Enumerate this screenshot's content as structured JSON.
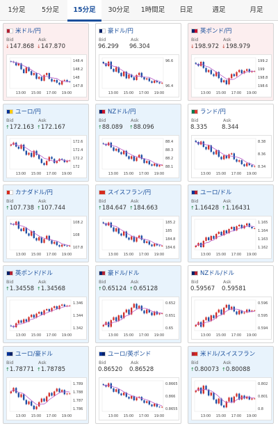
{
  "tabs": [
    "1分足",
    "5分足",
    "15分足",
    "30分足",
    "1時間足",
    "日足",
    "週足",
    "月足"
  ],
  "active_tab": 2,
  "colors": {
    "up_card": "#e8f3fc",
    "down_card": "#fceeef",
    "candle_up": "#d0312d",
    "candle_down": "#1f4fa3",
    "ma": "#b85cc8"
  },
  "labels": {
    "bid": "Bid",
    "ask": "Ask"
  },
  "pairs": [
    {
      "name": "米ドル/円",
      "flag": [
        "#b22234",
        "#ffffff"
      ],
      "trend": "down",
      "bid": "147.868",
      "ask": "147.870",
      "chart_data": {
        "type": "candlestick",
        "x_ticks": [
          "13:00",
          "15:00",
          "17:00",
          "19:00"
        ],
        "y_ticks": [
          "148.4",
          "148.2",
          "148",
          "147.8"
        ],
        "ylim": [
          147.7,
          148.5
        ],
        "close": [
          148.4,
          148.38,
          148.3,
          148.35,
          148.2,
          148.1,
          148.25,
          148.15,
          148.05,
          148.1,
          147.95,
          148.0,
          147.9,
          148.05,
          148.1,
          147.95,
          147.88,
          147.92,
          147.85,
          147.8,
          147.9,
          147.92,
          147.88,
          147.87
        ]
      }
    },
    {
      "name": "豪ドル/円",
      "flag": [
        "#012169",
        "#ffffff"
      ],
      "trend": "flat",
      "bid": "96.299",
      "ask": "96.304",
      "chart_data": {
        "type": "candlestick",
        "x_ticks": [
          "13:00",
          "15:00",
          "17:00",
          "19:00"
        ],
        "y_ticks": [
          "96.6",
          "96.4"
        ],
        "ylim": [
          96.2,
          96.75
        ],
        "close": [
          96.65,
          96.6,
          96.68,
          96.55,
          96.5,
          96.58,
          96.48,
          96.42,
          96.5,
          96.38,
          96.45,
          96.4,
          96.35,
          96.44,
          96.48,
          96.4,
          96.36,
          96.38,
          96.33,
          96.3,
          96.34,
          96.31,
          96.29,
          96.3
        ]
      }
    },
    {
      "name": "英ポンド/円",
      "flag": [
        "#012169",
        "#c8102e"
      ],
      "trend": "down",
      "bid": "198.972",
      "ask": "198.979",
      "chart_data": {
        "type": "candlestick",
        "x_ticks": [
          "13:00",
          "15:00",
          "17:00",
          "19:00"
        ],
        "y_ticks": [
          "199.2",
          "199",
          "198.8",
          "198.6"
        ],
        "ylim": [
          198.55,
          199.3
        ],
        "close": [
          199.15,
          199.1,
          199.2,
          199.05,
          198.95,
          199.0,
          198.9,
          198.85,
          198.95,
          198.8,
          198.7,
          198.75,
          198.65,
          198.8,
          198.9,
          198.85,
          198.95,
          199.0,
          198.92,
          198.98,
          199.02,
          198.95,
          198.97,
          198.97
        ]
      }
    },
    {
      "name": "ユーロ/円",
      "flag": [
        "#003399",
        "#ffcc00"
      ],
      "trend": "up",
      "bid": "172.163",
      "ask": "172.167",
      "chart_data": {
        "type": "candlestick",
        "x_ticks": [
          "13:00",
          "15:00",
          "17:00",
          "19:00"
        ],
        "y_ticks": [
          "172.6",
          "172.4",
          "172.2",
          "172"
        ],
        "ylim": [
          171.95,
          172.7
        ],
        "close": [
          172.55,
          172.6,
          172.5,
          172.45,
          172.55,
          172.4,
          172.3,
          172.35,
          172.25,
          172.4,
          172.3,
          172.2,
          172.1,
          172.05,
          172.15,
          172.25,
          172.2,
          172.1,
          172.15,
          172.2,
          172.18,
          172.12,
          172.16,
          172.16
        ]
      }
    },
    {
      "name": "NZドル/円",
      "flag": [
        "#012169",
        "#cc142b"
      ],
      "trend": "up",
      "bid": "88.089",
      "ask": "88.096",
      "chart_data": {
        "type": "candlestick",
        "x_ticks": [
          "13:00",
          "15:00",
          "17:00",
          "19:00"
        ],
        "y_ticks": [
          "88.4",
          "88.3",
          "88.2",
          "88.1"
        ],
        "ylim": [
          88.03,
          88.48
        ],
        "close": [
          88.4,
          88.38,
          88.42,
          88.35,
          88.3,
          88.33,
          88.28,
          88.25,
          88.3,
          88.22,
          88.18,
          88.22,
          88.15,
          88.2,
          88.24,
          88.18,
          88.12,
          88.15,
          88.1,
          88.08,
          88.11,
          88.07,
          88.09,
          88.09
        ]
      }
    },
    {
      "name": "ランド/円",
      "flag": [
        "#007a4d",
        "#de3831"
      ],
      "trend": "flat",
      "bid": "8.335",
      "ask": "8.344",
      "chart_data": {
        "type": "candlestick",
        "x_ticks": [
          "13:00",
          "15:00",
          "17:00",
          "19:00"
        ],
        "y_ticks": [
          "8.38",
          "8.36",
          "8.34"
        ],
        "ylim": [
          8.33,
          8.392
        ],
        "close": [
          8.385,
          8.38,
          8.386,
          8.375,
          8.37,
          8.378,
          8.365,
          8.36,
          8.368,
          8.355,
          8.35,
          8.358,
          8.352,
          8.36,
          8.362,
          8.35,
          8.345,
          8.348,
          8.34,
          8.336,
          8.342,
          8.338,
          8.335,
          8.336
        ]
      }
    },
    {
      "name": "カナダドル/円",
      "flag": [
        "#d52b1e",
        "#ffffff"
      ],
      "trend": "up",
      "bid": "107.738",
      "ask": "107.744",
      "chart_data": {
        "type": "candlestick",
        "x_ticks": [
          "13:00",
          "15:00",
          "17:00",
          "19:00"
        ],
        "y_ticks": [
          "108.2",
          "108",
          "107.8"
        ],
        "ylim": [
          107.65,
          108.3
        ],
        "close": [
          108.2,
          108.18,
          108.25,
          108.1,
          108.05,
          108.12,
          108.0,
          107.95,
          108.05,
          107.9,
          107.85,
          107.92,
          107.8,
          107.88,
          107.95,
          107.85,
          107.78,
          107.82,
          107.75,
          107.72,
          107.76,
          107.74,
          107.73,
          107.74
        ]
      }
    },
    {
      "name": "スイスフラン/円",
      "flag": [
        "#d52b1e",
        "#d52b1e"
      ],
      "trend": "up",
      "bid": "184.647",
      "ask": "184.663",
      "chart_data": {
        "type": "candlestick",
        "x_ticks": [
          "13:00",
          "15:00",
          "17:00",
          "19:00"
        ],
        "y_ticks": [
          "185.2",
          "185",
          "184.8",
          "184.6"
        ],
        "ylim": [
          184.55,
          185.3
        ],
        "close": [
          185.2,
          185.15,
          185.22,
          185.1,
          185.0,
          185.08,
          184.95,
          184.9,
          185.0,
          184.85,
          184.8,
          184.88,
          184.75,
          184.85,
          184.9,
          184.8,
          184.72,
          184.76,
          184.68,
          184.64,
          184.7,
          184.66,
          184.65,
          184.65
        ]
      }
    },
    {
      "name": "ユーロ/ドル",
      "flag": [
        "#003399",
        "#b22234"
      ],
      "trend": "up",
      "bid": "1.16428",
      "ask": "1.16431",
      "chart_data": {
        "type": "candlestick",
        "x_ticks": [
          "13:00",
          "15:00",
          "17:00",
          "19:00"
        ],
        "y_ticks": [
          "1.165",
          "1.164",
          "1.163",
          "1.162"
        ],
        "ylim": [
          1.1612,
          1.1656
        ],
        "close": [
          1.1618,
          1.1622,
          1.1616,
          1.1625,
          1.163,
          1.1626,
          1.1632,
          1.1628,
          1.1635,
          1.1638,
          1.1633,
          1.164,
          1.1636,
          1.1642,
          1.1645,
          1.164,
          1.1646,
          1.1648,
          1.1643,
          1.1647,
          1.165,
          1.1645,
          1.1643,
          1.1643
        ]
      }
    },
    {
      "name": "英ポンド/ドル",
      "flag": [
        "#012169",
        "#b22234"
      ],
      "trend": "up",
      "bid": "1.34558",
      "ask": "1.34568",
      "chart_data": {
        "type": "candlestick",
        "x_ticks": [
          "13:00",
          "15:00",
          "17:00",
          "19:00"
        ],
        "y_ticks": [
          "1.346",
          "1.344",
          "1.342"
        ],
        "ylim": [
          1.3412,
          1.3466
        ],
        "close": [
          1.342,
          1.3418,
          1.3425,
          1.343,
          1.3426,
          1.3432,
          1.3428,
          1.3436,
          1.344,
          1.3435,
          1.3442,
          1.3445,
          1.344,
          1.3448,
          1.345,
          1.3446,
          1.3452,
          1.3455,
          1.345,
          1.3456,
          1.3458,
          1.3455,
          1.3456,
          1.3456
        ]
      }
    },
    {
      "name": "豪ドル/ドル",
      "flag": [
        "#012169",
        "#b22234"
      ],
      "trend": "up",
      "bid": "0.65124",
      "ask": "0.65128",
      "chart_data": {
        "type": "candlestick",
        "x_ticks": [
          "13:00",
          "15:00",
          "17:00",
          "19:00"
        ],
        "y_ticks": [
          "0.652",
          "0.651",
          "0.65"
        ],
        "ylim": [
          0.6494,
          0.6526
        ],
        "close": [
          0.65,
          0.6503,
          0.6498,
          0.6505,
          0.6508,
          0.6504,
          0.651,
          0.6507,
          0.6513,
          0.6516,
          0.6511,
          0.6518,
          0.6522,
          0.6517,
          0.652,
          0.6515,
          0.6512,
          0.6516,
          0.6513,
          0.651,
          0.6514,
          0.6511,
          0.6512,
          0.6512
        ]
      }
    },
    {
      "name": "NZドル/ドル",
      "flag": [
        "#012169",
        "#b22234"
      ],
      "trend": "flat",
      "bid": "0.59567",
      "ask": "0.59581",
      "chart_data": {
        "type": "candlestick",
        "x_ticks": [
          "13:00",
          "15:00",
          "17:00",
          "19:00"
        ],
        "y_ticks": [
          "0.596",
          "0.595",
          "0.594"
        ],
        "ylim": [
          0.5936,
          0.5968
        ],
        "close": [
          0.5942,
          0.5945,
          0.594,
          0.5947,
          0.595,
          0.5946,
          0.5952,
          0.5949,
          0.5955,
          0.5958,
          0.5953,
          0.596,
          0.5963,
          0.5958,
          0.5961,
          0.5956,
          0.5953,
          0.5957,
          0.5954,
          0.5955,
          0.5958,
          0.5956,
          0.5957,
          0.5957
        ]
      }
    },
    {
      "name": "ユーロ/豪ドル",
      "flag": [
        "#003399",
        "#012169"
      ],
      "trend": "up",
      "bid": "1.78771",
      "ask": "1.78785",
      "chart_data": {
        "type": "candlestick",
        "x_ticks": [
          "13:00",
          "15:00",
          "17:00",
          "19:00"
        ],
        "y_ticks": [
          "1.789",
          "1.788",
          "1.787",
          "1.786"
        ],
        "ylim": [
          1.7852,
          1.7895
        ],
        "close": [
          1.788,
          1.7885,
          1.7878,
          1.7872,
          1.7876,
          1.7868,
          1.7862,
          1.7866,
          1.786,
          1.7855,
          1.7859,
          1.7865,
          1.787,
          1.7866,
          1.7873,
          1.7878,
          1.7874,
          1.788,
          1.7884,
          1.7879,
          1.7882,
          1.7876,
          1.7877,
          1.7877
        ]
      }
    },
    {
      "name": "ユーロ/英ポンド",
      "flag": [
        "#003399",
        "#012169"
      ],
      "trend": "flat",
      "bid": "0.86520",
      "ask": "0.86528",
      "chart_data": {
        "type": "candlestick",
        "x_ticks": [
          "13:00",
          "15:00",
          "17:00",
          "19:00"
        ],
        "y_ticks": [
          "0.8665",
          "0.866",
          "0.8655"
        ],
        "ylim": [
          0.86495,
          0.86675
        ],
        "close": [
          0.8665,
          0.8664,
          0.8666,
          0.8663,
          0.8661,
          0.86625,
          0.866,
          0.8659,
          0.86605,
          0.8658,
          0.8657,
          0.86585,
          0.8656,
          0.86575,
          0.8658,
          0.8656,
          0.86545,
          0.86555,
          0.86535,
          0.86525,
          0.8654,
          0.86522,
          0.8652,
          0.86521
        ]
      }
    },
    {
      "name": "米ドル/スイスフラン",
      "flag": [
        "#b22234",
        "#d52b1e"
      ],
      "trend": "up",
      "bid": "0.80073",
      "ask": "0.80088",
      "chart_data": {
        "type": "candlestick",
        "x_ticks": [
          "13:00",
          "15:00",
          "17:00",
          "19:00"
        ],
        "y_ticks": [
          "0.802",
          "0.801",
          "0.8"
        ],
        "ylim": [
          0.7994,
          0.8025
        ],
        "close": [
          0.8015,
          0.8018,
          0.8012,
          0.802,
          0.8016,
          0.801,
          0.8013,
          0.8006,
          0.8002,
          0.8007,
          0.8,
          0.7998,
          0.8004,
          0.8008,
          0.8003,
          0.8009,
          0.8012,
          0.8006,
          0.801,
          0.8007,
          0.8009,
          0.8006,
          0.8007,
          0.8007
        ]
      }
    }
  ]
}
